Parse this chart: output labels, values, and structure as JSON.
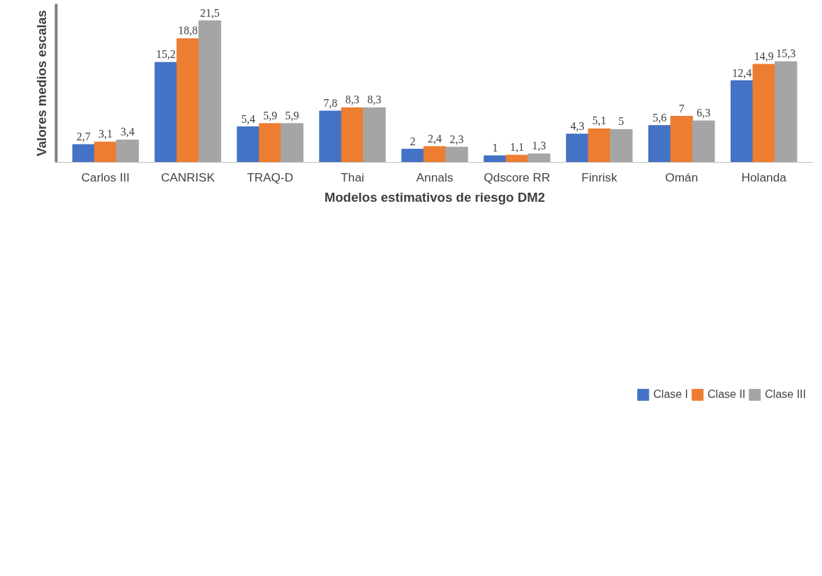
{
  "chart_data": {
    "type": "bar",
    "xlabel": "Modelos estimativos de riesgo DM2",
    "ylabel": "Valores medios escalas",
    "categories": [
      "Carlos III",
      "CANRISK",
      "TRAQ-D",
      "Thai",
      "Annals",
      "Qdscore RR",
      "Finrisk",
      "Omán",
      "Holanda"
    ],
    "series": [
      {
        "name": "Clase I",
        "color": "#4472c4",
        "values": [
          2.7,
          15.2,
          5.4,
          7.8,
          2,
          1,
          4.3,
          5.6,
          12.4
        ],
        "value_labels": [
          "2,7",
          "15,2",
          "5,4",
          "7,8",
          "2",
          "1",
          "4,3",
          "5,6",
          "12,4"
        ]
      },
      {
        "name": "Clase II",
        "color": "#ed7d31",
        "values": [
          3.1,
          18.8,
          5.9,
          8.3,
          2.4,
          1.1,
          5.1,
          7,
          14.9
        ],
        "value_labels": [
          "3,1",
          "18,8",
          "5,9",
          "8,3",
          "2,4",
          "1,1",
          "5,1",
          "7",
          "14,9"
        ]
      },
      {
        "name": "Clase III",
        "color": "#a5a5a5",
        "values": [
          3.4,
          21.5,
          5.9,
          8.3,
          2.3,
          1.3,
          5,
          6.3,
          15.3
        ],
        "value_labels": [
          "3,4",
          "21,5",
          "5,9",
          "8,3",
          "2,3",
          "1,3",
          "5",
          "6,3",
          "15,3"
        ]
      }
    ],
    "legend": "bottom",
    "grid": false,
    "tick_labels": "x"
  }
}
